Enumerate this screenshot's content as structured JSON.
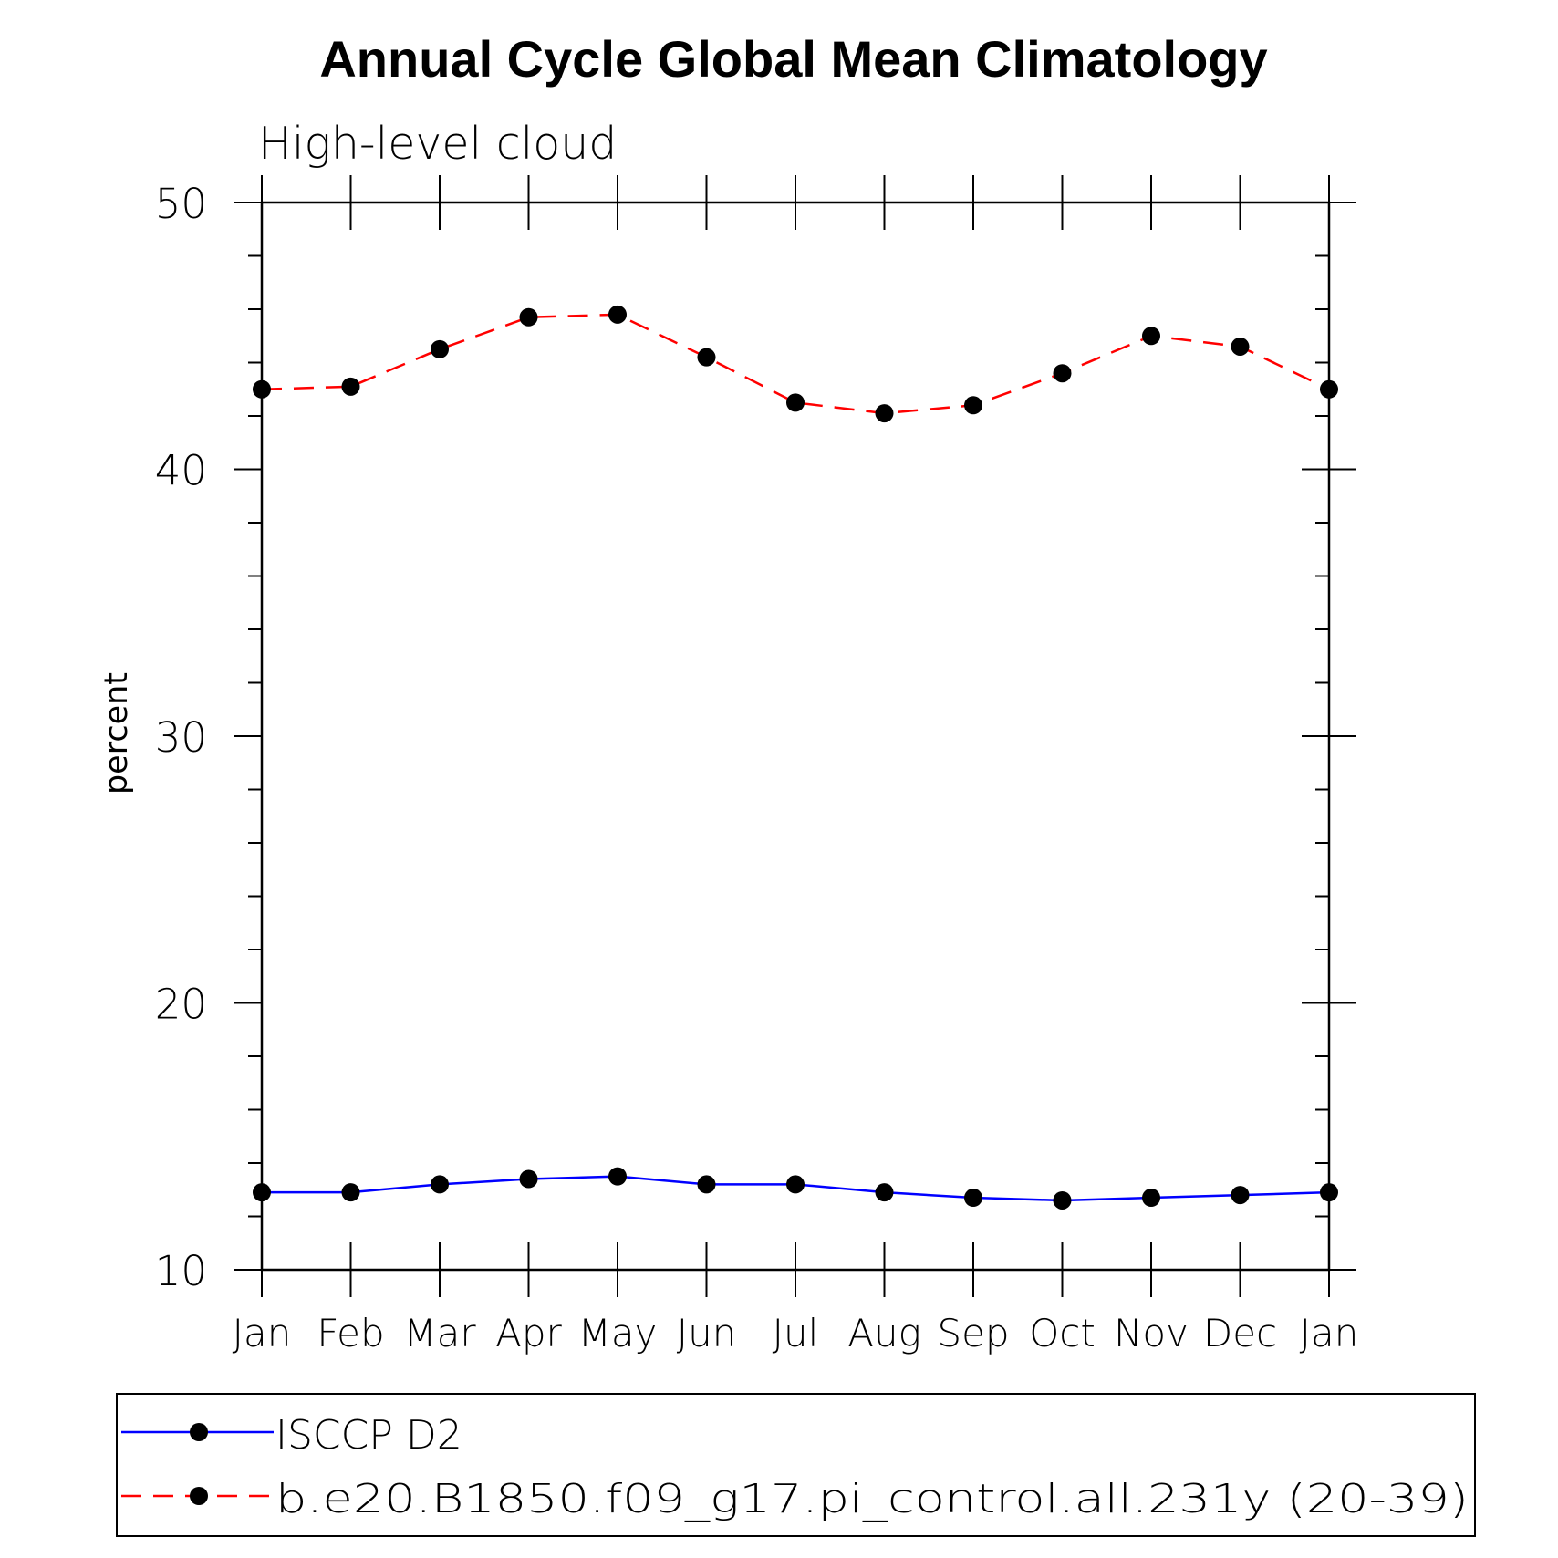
{
  "chart_data": {
    "type": "line",
    "title": "Annual Cycle Global Mean Climatology",
    "subtitle": "High-level cloud",
    "xlabel": "",
    "ylabel": "percent",
    "categories": [
      "Jan",
      "Feb",
      "Mar",
      "Apr",
      "May",
      "Jun",
      "Jul",
      "Aug",
      "Sep",
      "Oct",
      "Nov",
      "Dec",
      "Jan"
    ],
    "ylim": [
      10,
      50
    ],
    "yticks": [
      "10",
      "20",
      "30",
      "40",
      "50"
    ],
    "grid": false,
    "legend_position": "bottom",
    "series": [
      {
        "name": "ISCCP D2",
        "color": "#0000ff",
        "line_style": "solid",
        "marker": "filled-circle",
        "values": [
          12.9,
          12.9,
          13.2,
          13.4,
          13.5,
          13.2,
          13.2,
          12.9,
          12.7,
          12.6,
          12.7,
          12.8,
          12.9
        ]
      },
      {
        "name": "b.e20.B1850.f09_g17.pi_control.all.231y (20-39)",
        "color": "#ff0000",
        "line_style": "dashed",
        "marker": "filled-circle",
        "values": [
          43.0,
          43.1,
          44.5,
          45.7,
          45.8,
          44.2,
          42.5,
          42.1,
          42.4,
          43.6,
          45.0,
          44.6,
          43.0
        ]
      }
    ]
  }
}
